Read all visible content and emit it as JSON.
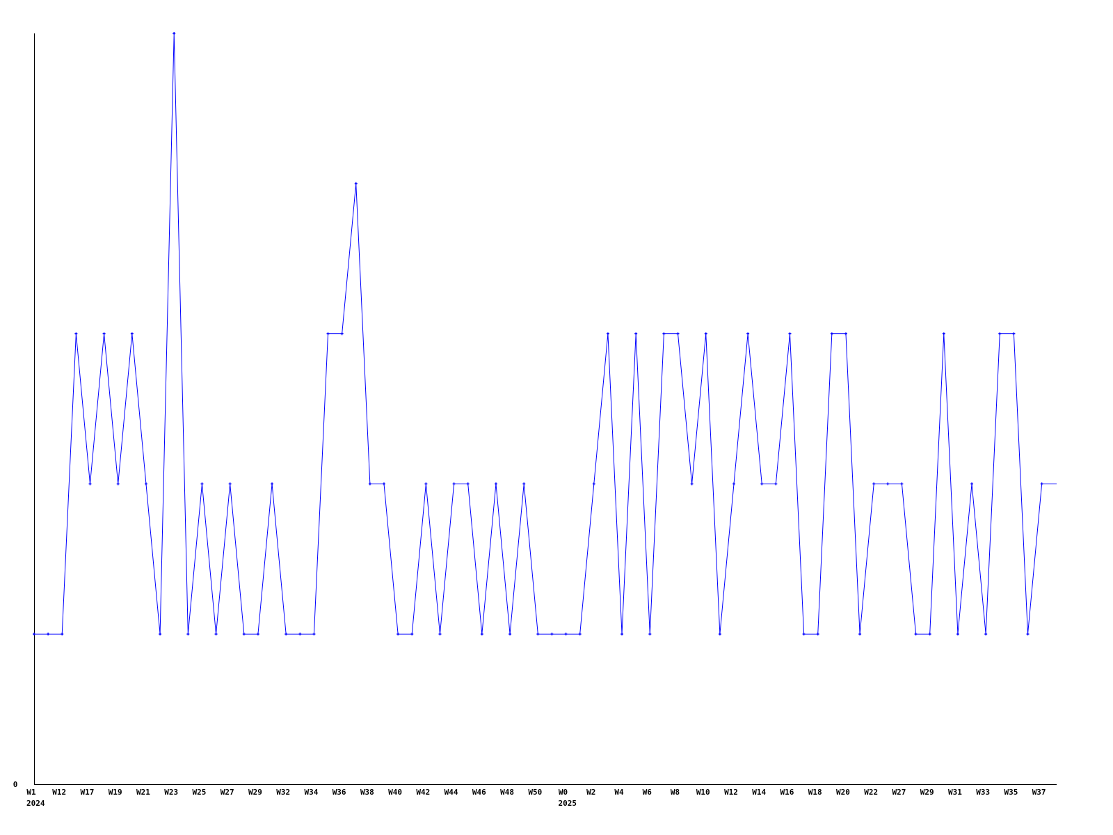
{
  "chart_data": {
    "type": "line",
    "title": "",
    "xlabel": "",
    "ylabel": "",
    "ylim": [
      0,
      5
    ],
    "y_tick_labels": [
      "0"
    ],
    "grid": false,
    "legend": "none",
    "line_color": "#0000ff",
    "x_tick_labels": [
      "W1",
      "W12",
      "W17",
      "W19",
      "W21",
      "W23",
      "W25",
      "W27",
      "W29",
      "W32",
      "W34",
      "W36",
      "W38",
      "W40",
      "W42",
      "W44",
      "W46",
      "W48",
      "W50",
      "W0",
      "W2",
      "W4",
      "W6",
      "W8",
      "W10",
      "W12",
      "W14",
      "W16",
      "W18",
      "W20",
      "W22",
      "W27",
      "W29",
      "W31",
      "W33",
      "W35",
      "W37"
    ],
    "year_labels": [
      {
        "label": "2024",
        "at_tick": 0
      },
      {
        "label": "2025",
        "at_tick": 19
      }
    ],
    "values": [
      1,
      1,
      1,
      3,
      2,
      3,
      2,
      3,
      2,
      1,
      5,
      1,
      2,
      1,
      2,
      1,
      1,
      2,
      1,
      1,
      1,
      3,
      3,
      4,
      2,
      2,
      1,
      1,
      2,
      1,
      2,
      2,
      1,
      2,
      1,
      2,
      1,
      1,
      1,
      1,
      2,
      3,
      1,
      3,
      1,
      3,
      3,
      2,
      3,
      1,
      2,
      3,
      2,
      2,
      3,
      1,
      1,
      3,
      3,
      1,
      2,
      2,
      2,
      1,
      1,
      3,
      1,
      2,
      1,
      3,
      3,
      1,
      2
    ]
  }
}
